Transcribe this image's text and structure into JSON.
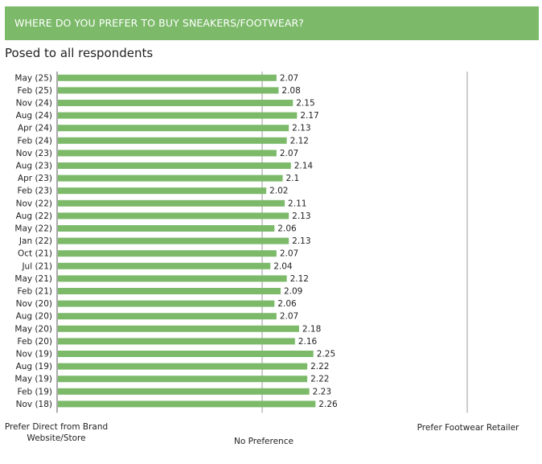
{
  "header": {
    "title": "WHERE DO YOU PREFER TO BUY SNEAKERS/FOOTWEAR?"
  },
  "subtitle": "Posed to all respondents",
  "footer": {
    "left": "Prefer Direct from Brand Website/Store",
    "middle": "No Preference",
    "right": "Prefer Footwear Retailer"
  },
  "colors": {
    "banner": "#7cba6a",
    "bar": "#7cba6a",
    "axis": "#9a9a9a"
  },
  "chart_data": {
    "type": "bar",
    "orientation": "horizontal",
    "xlim": [
      1,
      3
    ],
    "midpoint": 2,
    "categories": [
      "May (25)",
      "Feb (25)",
      "Nov (24)",
      "Aug (24)",
      "Apr (24)",
      "Feb (24)",
      "Nov (23)",
      "Aug (23)",
      "Apr (23)",
      "Feb (23)",
      "Nov (22)",
      "Aug (22)",
      "May (22)",
      "Jan (22)",
      "Oct (21)",
      "Jul (21)",
      "May (21)",
      "Feb (21)",
      "Nov (20)",
      "Aug (20)",
      "May (20)",
      "Feb (20)",
      "Nov (19)",
      "Aug (19)",
      "May (19)",
      "Feb (19)",
      "Nov (18)"
    ],
    "values": [
      2.07,
      2.08,
      2.15,
      2.17,
      2.13,
      2.12,
      2.07,
      2.14,
      2.1,
      2.02,
      2.11,
      2.13,
      2.06,
      2.13,
      2.07,
      2.04,
      2.12,
      2.09,
      2.06,
      2.07,
      2.18,
      2.16,
      2.25,
      2.22,
      2.22,
      2.23,
      2.26
    ],
    "labels": [
      "2.07",
      "2.08",
      "2.15",
      "2.17",
      "2.13",
      "2.12",
      "2.07",
      "2.14",
      "2.1",
      "2.02",
      "2.11",
      "2.13",
      "2.06",
      "2.13",
      "2.07",
      "2.04",
      "2.12",
      "2.09",
      "2.06",
      "2.07",
      "2.18",
      "2.16",
      "2.25",
      "2.22",
      "2.22",
      "2.23",
      "2.26"
    ]
  }
}
